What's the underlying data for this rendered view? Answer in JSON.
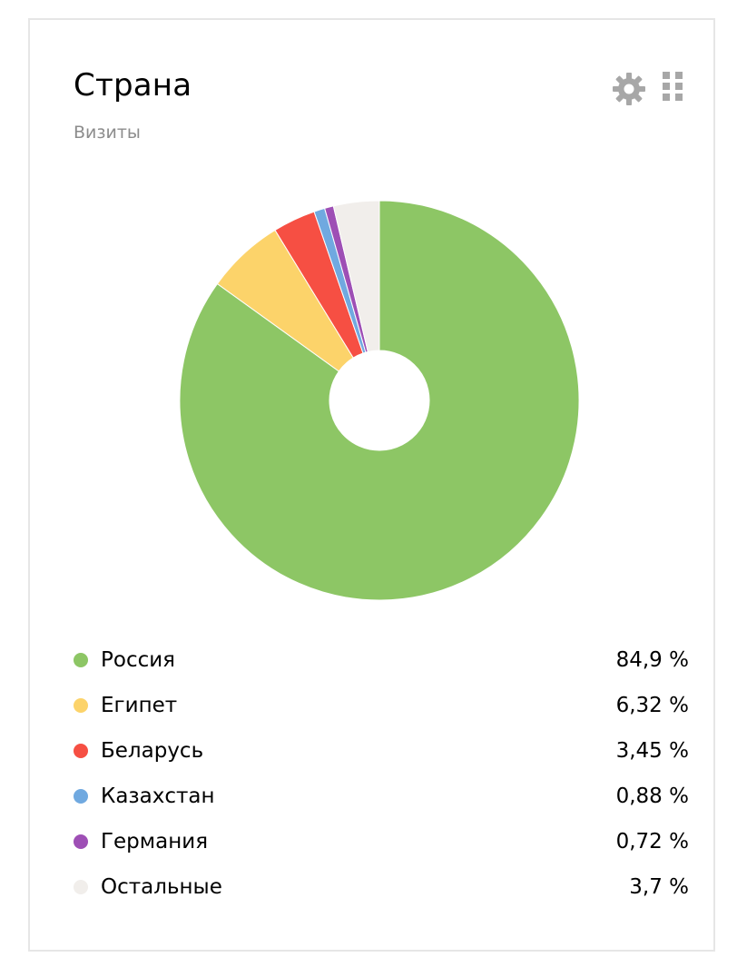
{
  "widget": {
    "title": "Страна",
    "subtitle": "Визиты",
    "icons": [
      "gear-icon",
      "drag-grip-icon"
    ]
  },
  "chart_data": {
    "type": "pie",
    "donut": true,
    "categories": [
      "Россия",
      "Египет",
      "Беларусь",
      "Казахстан",
      "Германия",
      "Остальные"
    ],
    "values": [
      84.9,
      6.32,
      3.45,
      0.88,
      0.72,
      3.7
    ],
    "value_labels": [
      "84,9 %",
      "6,32 %",
      "3,45 %",
      "0,88 %",
      "0,72 %",
      "3,7 %"
    ],
    "colors": [
      "#8dc665",
      "#fcd36a",
      "#f64f43",
      "#70a9e0",
      "#9e4fb5",
      "#f1eeeb"
    ],
    "title": "Страна",
    "subtitle": "Визиты",
    "legend": "bottom"
  }
}
